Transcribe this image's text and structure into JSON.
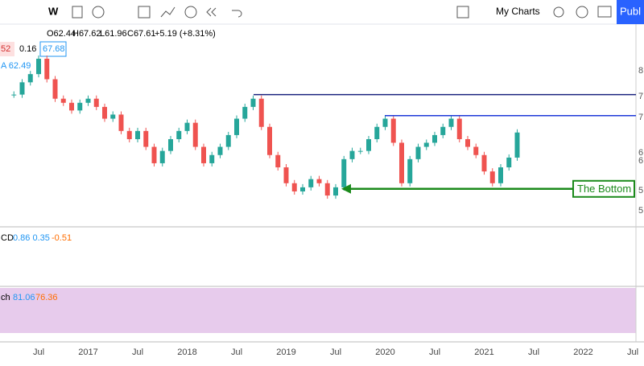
{
  "toolbar": {
    "interval": "W",
    "charts": "My Charts",
    "publish": "Publ"
  },
  "legend": {
    "open": "O62.44",
    "high": "H67.62",
    "low": "L61.96",
    "close": "C67.61",
    "change": "+5.19 (+8.31%)",
    "label_a": "52",
    "label_b": "0.16",
    "label_c": "67.68",
    "ma": "A 62.49"
  },
  "chart_data": {
    "type": "candlestick",
    "ylim": [
      49.5,
      87.5
    ],
    "prices": [
      75,
      77.4,
      79,
      82,
      78,
      74.2,
      73.4,
      71.9,
      73.4,
      74.2,
      72.6,
      70.3,
      71.1,
      67.9,
      66.3,
      67.9,
      64.8,
      61.6,
      64,
      66.3,
      67.9,
      69.5,
      64.8,
      61.6,
      63.2,
      64.8,
      67.1,
      70.3,
      72.6,
      74.2,
      68.7,
      63.2,
      60.8,
      57.7,
      56.1,
      56.9,
      58.5,
      57.7,
      55.3,
      56.9,
      62.4,
      64,
      64,
      66.3,
      68.7,
      70.3,
      65.6,
      57.7,
      62.4,
      64.8,
      65.6,
      67.1,
      68.7,
      70.3,
      66.3,
      64.8,
      63.2,
      60,
      57.7,
      60.8,
      62.7,
      67.6
    ],
    "levels": [
      75,
      70.9
    ],
    "bottom": 56.6,
    "annotation": "The Bottom",
    "x_labels": [
      "Jul",
      "2017",
      "Jul",
      "2018",
      "Jul",
      "2019",
      "Jul",
      "2020",
      "Jul",
      "2021",
      "Jul",
      "2022",
      "Jul"
    ],
    "right_labels": [
      "8",
      "7",
      "7",
      "6",
      "6",
      "5",
      "5"
    ]
  },
  "macd": {
    "label": "CD",
    "values": "0.86 0.35",
    "signal": "-0.51"
  },
  "stoch": {
    "label": "ch",
    "k": "81.06",
    "d": "76.36"
  }
}
